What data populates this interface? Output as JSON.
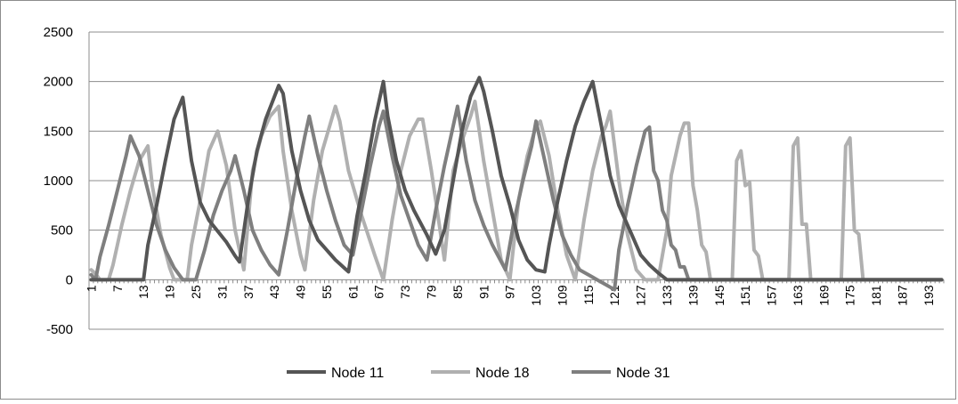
{
  "chart_data": {
    "type": "line",
    "title": "",
    "xlabel": "",
    "ylabel": "",
    "x": {
      "start": 1,
      "end": 196,
      "step": 1
    },
    "x_tick_labels": [
      "1",
      "7",
      "13",
      "19",
      "25",
      "31",
      "37",
      "43",
      "49",
      "55",
      "61",
      "67",
      "73",
      "79",
      "85",
      "91",
      "97",
      "103",
      "109",
      "115",
      "121",
      "127",
      "133",
      "139",
      "145",
      "151",
      "157",
      "163",
      "169",
      "175",
      "181",
      "187",
      "193"
    ],
    "y_ticks": [
      "-500",
      "0",
      "500",
      "1000",
      "1500",
      "2000",
      "2500"
    ],
    "ylim": [
      -500,
      2500
    ],
    "grid": "horizontal",
    "legend_position": "bottom",
    "series": [
      {
        "name": "Node 11",
        "color": "#555555",
        "anchors": [
          [
            1,
            0
          ],
          [
            13,
            0
          ],
          [
            14,
            350
          ],
          [
            16,
            750
          ],
          [
            18,
            1200
          ],
          [
            20,
            1620
          ],
          [
            22,
            1840
          ],
          [
            24,
            1200
          ],
          [
            26,
            780
          ],
          [
            28,
            600
          ],
          [
            32,
            380
          ],
          [
            34,
            240
          ],
          [
            35,
            180
          ],
          [
            37,
            800
          ],
          [
            39,
            1300
          ],
          [
            41,
            1620
          ],
          [
            44,
            1960
          ],
          [
            45,
            1880
          ],
          [
            47,
            1300
          ],
          [
            49,
            900
          ],
          [
            51,
            600
          ],
          [
            53,
            400
          ],
          [
            57,
            200
          ],
          [
            60,
            80
          ],
          [
            62,
            650
          ],
          [
            64,
            1100
          ],
          [
            66,
            1600
          ],
          [
            68,
            2000
          ],
          [
            69,
            1650
          ],
          [
            71,
            1200
          ],
          [
            73,
            900
          ],
          [
            75,
            700
          ],
          [
            78,
            450
          ],
          [
            80,
            260
          ],
          [
            82,
            500
          ],
          [
            84,
            1000
          ],
          [
            86,
            1500
          ],
          [
            88,
            1850
          ],
          [
            90,
            2040
          ],
          [
            91,
            1900
          ],
          [
            93,
            1500
          ],
          [
            95,
            1050
          ],
          [
            97,
            750
          ],
          [
            99,
            400
          ],
          [
            101,
            200
          ],
          [
            103,
            100
          ],
          [
            105,
            80
          ],
          [
            106,
            350
          ],
          [
            108,
            800
          ],
          [
            110,
            1200
          ],
          [
            112,
            1550
          ],
          [
            114,
            1800
          ],
          [
            116,
            2000
          ],
          [
            118,
            1550
          ],
          [
            120,
            1050
          ],
          [
            122,
            750
          ],
          [
            125,
            450
          ],
          [
            127,
            250
          ],
          [
            129,
            150
          ],
          [
            131,
            70
          ],
          [
            133,
            0
          ],
          [
            196,
            0
          ]
        ]
      },
      {
        "name": "Node 18",
        "color": "#b0b0b0",
        "anchors": [
          [
            1,
            100
          ],
          [
            2,
            60
          ],
          [
            3,
            0
          ],
          [
            5,
            0
          ],
          [
            6,
            150
          ],
          [
            8,
            550
          ],
          [
            10,
            900
          ],
          [
            12,
            1200
          ],
          [
            14,
            1350
          ],
          [
            15,
            950
          ],
          [
            17,
            450
          ],
          [
            19,
            120
          ],
          [
            20,
            0
          ],
          [
            23,
            0
          ],
          [
            24,
            350
          ],
          [
            26,
            800
          ],
          [
            28,
            1300
          ],
          [
            30,
            1500
          ],
          [
            32,
            1150
          ],
          [
            34,
            500
          ],
          [
            36,
            100
          ],
          [
            38,
            1100
          ],
          [
            40,
            1450
          ],
          [
            42,
            1650
          ],
          [
            44,
            1750
          ],
          [
            45,
            1300
          ],
          [
            47,
            700
          ],
          [
            49,
            250
          ],
          [
            50,
            100
          ],
          [
            52,
            800
          ],
          [
            54,
            1300
          ],
          [
            56,
            1600
          ],
          [
            57,
            1750
          ],
          [
            58,
            1600
          ],
          [
            60,
            1100
          ],
          [
            63,
            650
          ],
          [
            66,
            250
          ],
          [
            68,
            0
          ],
          [
            70,
            600
          ],
          [
            72,
            1100
          ],
          [
            74,
            1450
          ],
          [
            76,
            1620
          ],
          [
            77,
            1620
          ],
          [
            79,
            1100
          ],
          [
            81,
            500
          ],
          [
            82,
            200
          ],
          [
            84,
            1100
          ],
          [
            86,
            1400
          ],
          [
            88,
            1650
          ],
          [
            89,
            1800
          ],
          [
            91,
            1200
          ],
          [
            93,
            700
          ],
          [
            95,
            200
          ],
          [
            97,
            0
          ],
          [
            99,
            800
          ],
          [
            101,
            1250
          ],
          [
            103,
            1550
          ],
          [
            104,
            1600
          ],
          [
            106,
            1250
          ],
          [
            108,
            700
          ],
          [
            110,
            250
          ],
          [
            112,
            0
          ],
          [
            114,
            600
          ],
          [
            116,
            1100
          ],
          [
            118,
            1450
          ],
          [
            119,
            1550
          ],
          [
            120,
            1700
          ],
          [
            122,
            1000
          ],
          [
            124,
            450
          ],
          [
            126,
            100
          ],
          [
            128,
            0
          ],
          [
            131,
            0
          ],
          [
            133,
            500
          ],
          [
            134,
            1050
          ],
          [
            136,
            1450
          ],
          [
            137,
            1580
          ],
          [
            138,
            1580
          ],
          [
            139,
            950
          ],
          [
            140,
            700
          ],
          [
            141,
            350
          ],
          [
            142,
            280
          ],
          [
            143,
            0
          ],
          [
            148,
            0
          ],
          [
            149,
            1200
          ],
          [
            150,
            1300
          ],
          [
            151,
            950
          ],
          [
            152,
            980
          ],
          [
            153,
            300
          ],
          [
            154,
            240
          ],
          [
            155,
            0
          ],
          [
            161,
            0
          ],
          [
            162,
            1350
          ],
          [
            163,
            1430
          ],
          [
            164,
            560
          ],
          [
            165,
            560
          ],
          [
            166,
            0
          ],
          [
            173,
            0
          ],
          [
            174,
            1350
          ],
          [
            175,
            1430
          ],
          [
            176,
            500
          ],
          [
            177,
            460
          ],
          [
            178,
            0
          ],
          [
            196,
            0
          ]
        ]
      },
      {
        "name": "Node 31",
        "color": "#7f7f7f",
        "anchors": [
          [
            1,
            50
          ],
          [
            2,
            0
          ],
          [
            3,
            230
          ],
          [
            5,
            550
          ],
          [
            7,
            900
          ],
          [
            9,
            1250
          ],
          [
            10,
            1450
          ],
          [
            12,
            1250
          ],
          [
            14,
            900
          ],
          [
            16,
            550
          ],
          [
            18,
            300
          ],
          [
            20,
            120
          ],
          [
            22,
            0
          ],
          [
            25,
            0
          ],
          [
            27,
            300
          ],
          [
            29,
            650
          ],
          [
            31,
            900
          ],
          [
            33,
            1100
          ],
          [
            34,
            1250
          ],
          [
            36,
            900
          ],
          [
            38,
            500
          ],
          [
            40,
            300
          ],
          [
            42,
            150
          ],
          [
            44,
            50
          ],
          [
            46,
            500
          ],
          [
            48,
            1000
          ],
          [
            50,
            1450
          ],
          [
            51,
            1650
          ],
          [
            53,
            1250
          ],
          [
            55,
            900
          ],
          [
            57,
            600
          ],
          [
            59,
            350
          ],
          [
            61,
            250
          ],
          [
            63,
            700
          ],
          [
            65,
            1150
          ],
          [
            67,
            1550
          ],
          [
            68,
            1700
          ],
          [
            70,
            1250
          ],
          [
            72,
            850
          ],
          [
            74,
            600
          ],
          [
            76,
            350
          ],
          [
            78,
            200
          ],
          [
            80,
            700
          ],
          [
            82,
            1150
          ],
          [
            84,
            1550
          ],
          [
            85,
            1750
          ],
          [
            87,
            1200
          ],
          [
            89,
            800
          ],
          [
            91,
            550
          ],
          [
            93,
            350
          ],
          [
            96,
            100
          ],
          [
            98,
            600
          ],
          [
            100,
            1000
          ],
          [
            102,
            1350
          ],
          [
            103,
            1600
          ],
          [
            105,
            1200
          ],
          [
            107,
            800
          ],
          [
            109,
            450
          ],
          [
            111,
            250
          ],
          [
            113,
            100
          ],
          [
            115,
            50
          ],
          [
            117,
            0
          ],
          [
            119,
            -50
          ],
          [
            121,
            -100
          ],
          [
            122,
            300
          ],
          [
            124,
            750
          ],
          [
            126,
            1150
          ],
          [
            128,
            1500
          ],
          [
            129,
            1540
          ],
          [
            130,
            1100
          ],
          [
            131,
            1000
          ],
          [
            132,
            700
          ],
          [
            133,
            600
          ],
          [
            134,
            350
          ],
          [
            135,
            300
          ],
          [
            136,
            130
          ],
          [
            137,
            130
          ],
          [
            138,
            0
          ],
          [
            196,
            0
          ]
        ]
      }
    ]
  }
}
